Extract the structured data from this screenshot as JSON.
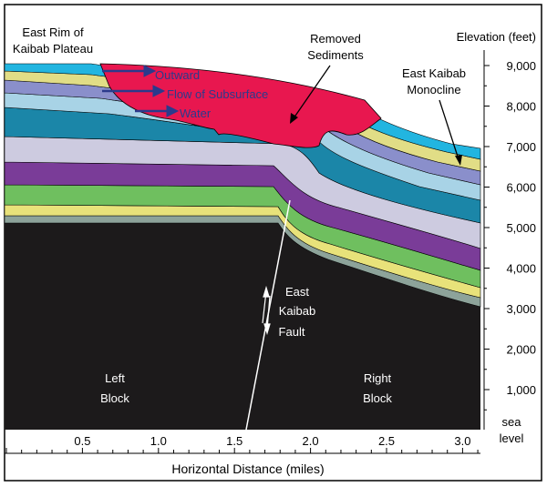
{
  "labels": {
    "east_rim_line1": "East Rim of",
    "east_rim_line2": "Kaibab Plateau",
    "removed_line1": "Removed",
    "removed_line2": "Sediments",
    "monocline_line1": "East Kaibab",
    "monocline_line2": "Monocline",
    "flow_line1": "Outward",
    "flow_line2": "Flow of Subsurface",
    "flow_line3": "Water",
    "fault_line1": "East",
    "fault_line2": "Kaibab",
    "fault_line3": "Fault",
    "left_block_line1": "Left",
    "left_block_line2": "Block",
    "right_block_line1": "Right",
    "right_block_line2": "Block"
  },
  "elevation_axis": {
    "title": "Elevation (feet)",
    "ticks": [
      "9,000",
      "8,000",
      "7,000",
      "6,000",
      "5,000",
      "4,000",
      "3,000",
      "2,000",
      "1,000"
    ],
    "sea_line1": "sea",
    "sea_line2": "level"
  },
  "distance_axis": {
    "title": "Horizontal Distance (miles)",
    "ticks": [
      "0.5",
      "1.0",
      "1.5",
      "2.0",
      "2.5",
      "3.0"
    ]
  },
  "colors": {
    "removed_sediments": "#e8174f",
    "basement": "#1c1a1b",
    "flow_arrow": "#2b3a8c",
    "outline": "#000000"
  }
}
